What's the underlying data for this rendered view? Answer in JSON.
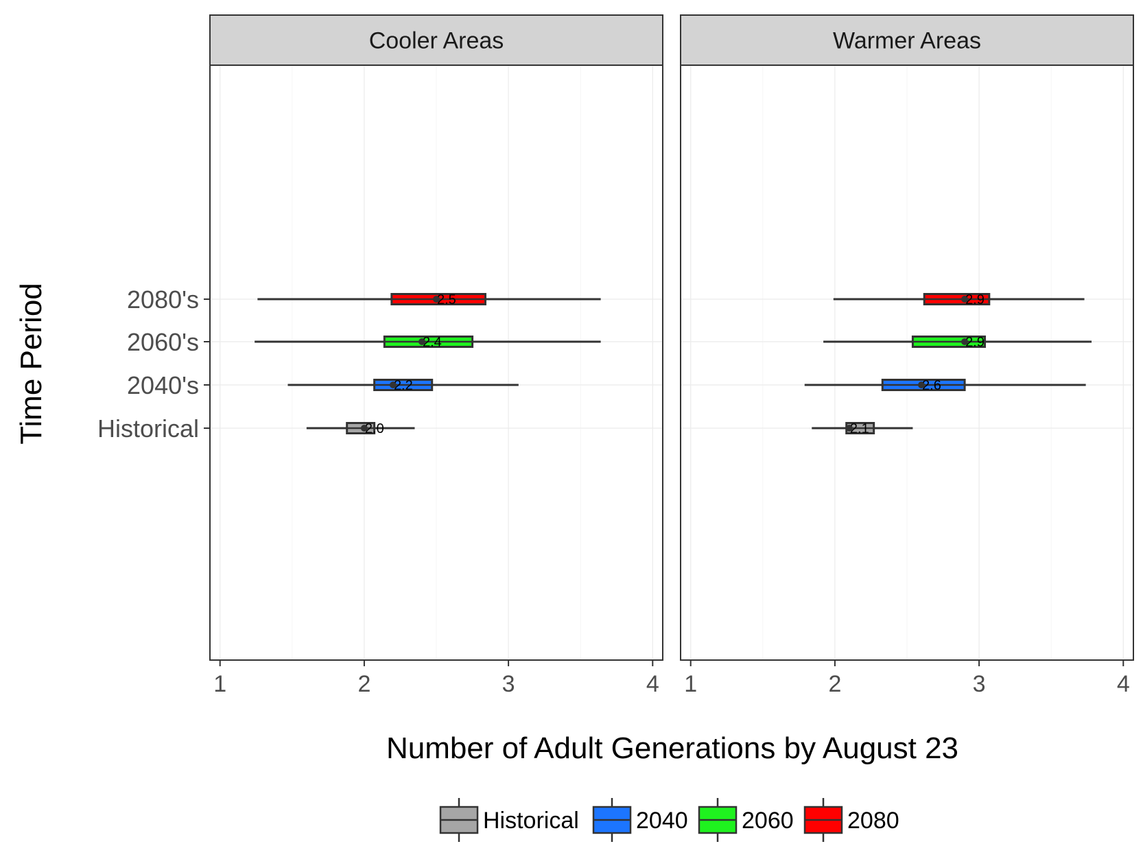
{
  "chart_data": {
    "type": "boxplot",
    "xlabel": "Number of Adult Generations by August 23",
    "ylabel": "Time Period",
    "xlim": [
      0.93,
      4.07
    ],
    "xticks": [
      1,
      2,
      3,
      4
    ],
    "categories": [
      "Historical",
      "2040's",
      "2060's",
      "2080's"
    ],
    "grid": true,
    "legend_position": "bottom",
    "colors": {
      "Historical": "#a6a6a6",
      "2040": "#1c75ff",
      "2060": "#1ff21f",
      "2080": "#ff0000"
    },
    "legend": [
      "Historical",
      "2040",
      "2060",
      "2080"
    ],
    "panels": [
      {
        "name": "Cooler Areas",
        "boxes": [
          {
            "category": "Historical",
            "series": "Historical",
            "whisker_low": 1.6,
            "q1": 1.88,
            "median": 2.0,
            "q3": 2.07,
            "whisker_high": 2.35,
            "label": "2.0"
          },
          {
            "category": "2040's",
            "series": "2040",
            "whisker_low": 1.47,
            "q1": 2.07,
            "median": 2.2,
            "q3": 2.47,
            "whisker_high": 3.07,
            "label": "2.2"
          },
          {
            "category": "2060's",
            "series": "2060",
            "whisker_low": 1.24,
            "q1": 2.14,
            "median": 2.4,
            "q3": 2.75,
            "whisker_high": 3.64,
            "label": "2.4"
          },
          {
            "category": "2080's",
            "series": "2080",
            "whisker_low": 1.26,
            "q1": 2.19,
            "median": 2.5,
            "q3": 2.84,
            "whisker_high": 3.64,
            "label": "2.5"
          }
        ]
      },
      {
        "name": "Warmer Areas",
        "boxes": [
          {
            "category": "Historical",
            "series": "Historical",
            "whisker_low": 1.84,
            "q1": 2.08,
            "median": 2.1,
            "q3": 2.27,
            "whisker_high": 2.54,
            "label": "2.1"
          },
          {
            "category": "2040's",
            "series": "2040",
            "whisker_low": 1.79,
            "q1": 2.33,
            "median": 2.6,
            "q3": 2.9,
            "whisker_high": 3.74,
            "label": "2.6"
          },
          {
            "category": "2060's",
            "series": "2060",
            "whisker_low": 1.92,
            "q1": 2.54,
            "median": 2.9,
            "q3": 3.04,
            "whisker_high": 3.78,
            "label": "2.9"
          },
          {
            "category": "2080's",
            "series": "2080",
            "whisker_low": 1.99,
            "q1": 2.62,
            "median": 2.9,
            "q3": 3.07,
            "whisker_high": 3.73,
            "label": "2.9"
          }
        ]
      }
    ]
  }
}
